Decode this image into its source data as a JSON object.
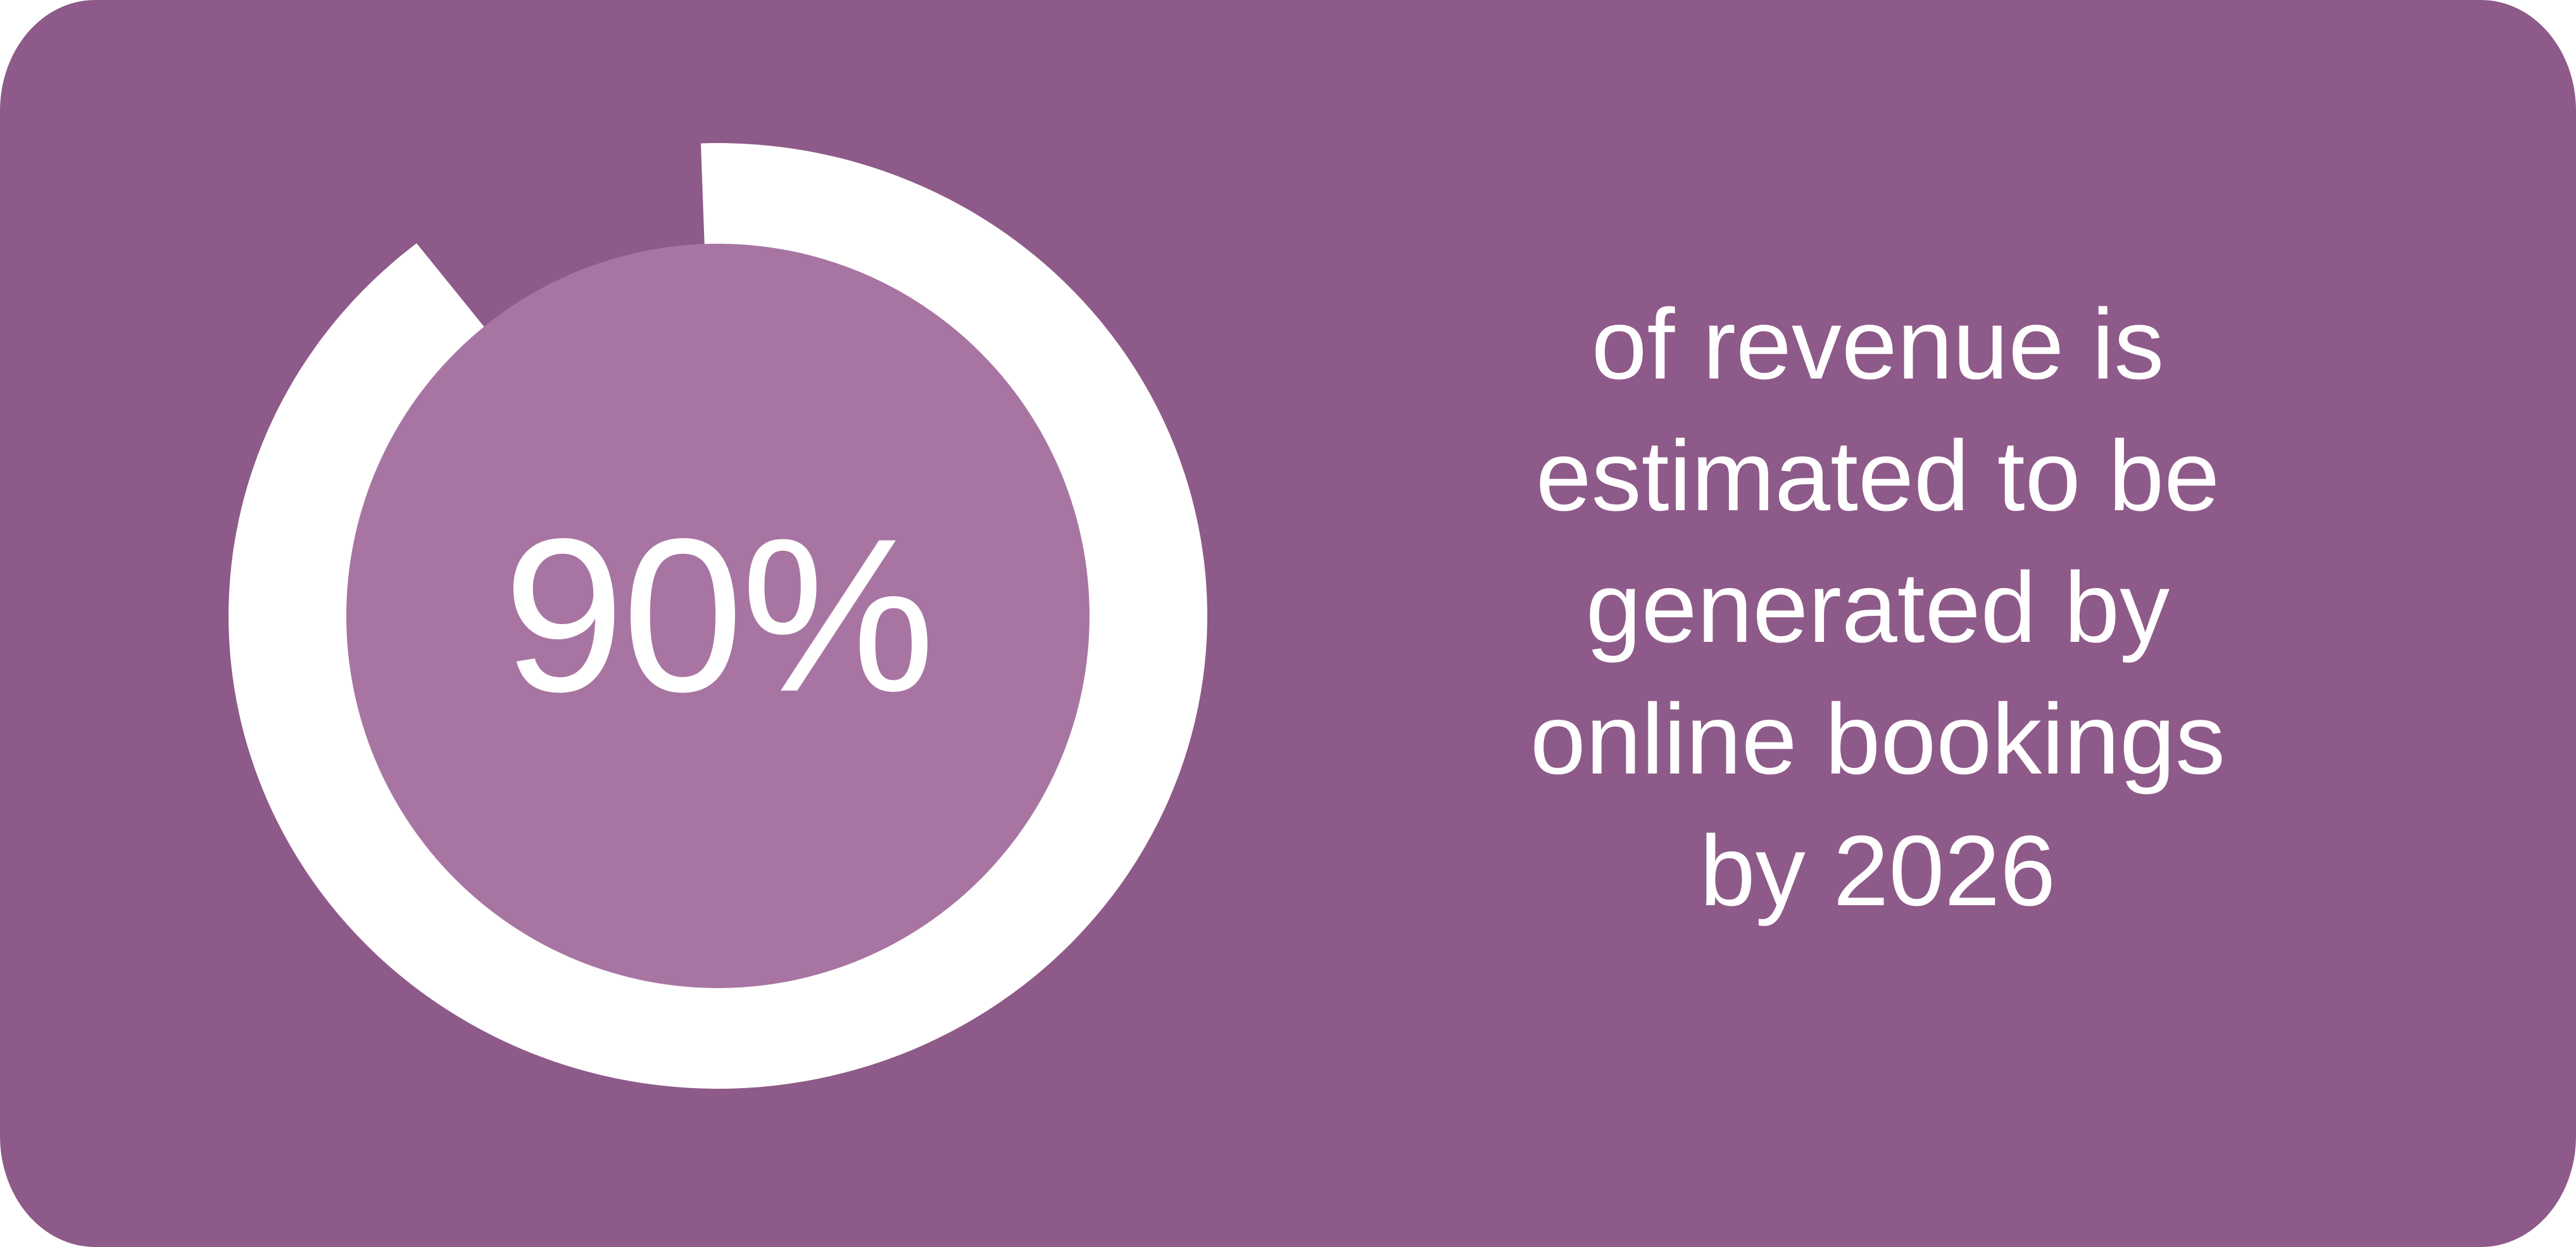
{
  "colors": {
    "background": "#8e5a89",
    "inner_circle": "#a875a2",
    "ring": "#ffffff",
    "text": "#ffffff"
  },
  "chart_data": {
    "type": "pie",
    "variant": "donut",
    "values": [
      90,
      10
    ],
    "highlight_value": 90,
    "center_label": "90%"
  },
  "caption": {
    "lines": [
      "of revenue is",
      "estimated to be",
      "generated by",
      "online bookings",
      "by 2026"
    ]
  }
}
